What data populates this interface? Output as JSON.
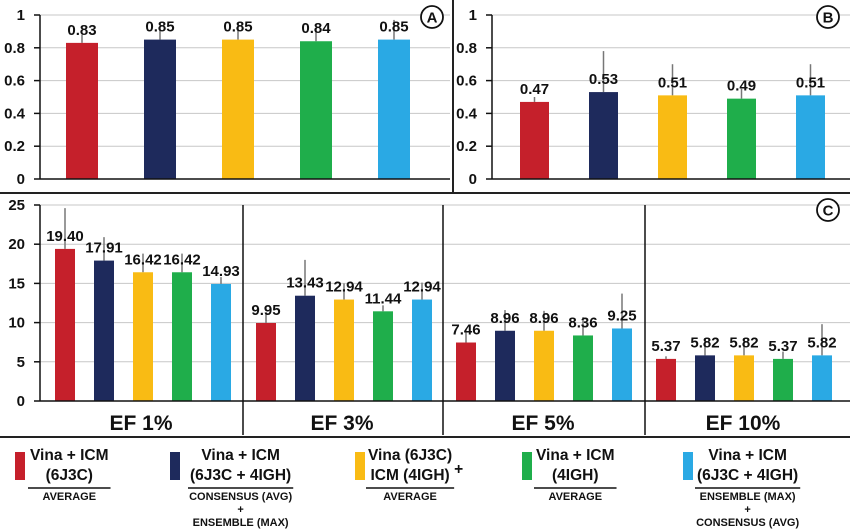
{
  "chart_data": [
    {
      "type": "bar",
      "panel": "A",
      "ylim": [
        0,
        1
      ],
      "yticks": [
        "0",
        "0.2",
        "0.4",
        "0.6",
        "0.8",
        "1"
      ],
      "series": [
        {
          "color": "#c5202b",
          "values": [
            0.83
          ],
          "labels": [
            "0.83"
          ]
        },
        {
          "color": "#1e2a5c",
          "values": [
            0.85
          ],
          "labels": [
            "0.85"
          ]
        },
        {
          "color": "#f9bb14",
          "values": [
            0.85
          ],
          "labels": [
            "0.85"
          ]
        },
        {
          "color": "#1fae4b",
          "values": [
            0.84
          ],
          "labels": [
            "0.84"
          ]
        },
        {
          "color": "#2aa9e4",
          "values": [
            0.85
          ],
          "labels": [
            "0.85"
          ]
        }
      ],
      "errors": [
        0.88,
        0.93,
        0.95,
        0.92,
        0.97
      ]
    },
    {
      "type": "bar",
      "panel": "B",
      "ylim": [
        0,
        1
      ],
      "yticks": [
        "0",
        "0.2",
        "0.4",
        "0.6",
        "0.8",
        "1"
      ],
      "series": [
        {
          "color": "#c5202b",
          "values": [
            0.47
          ],
          "labels": [
            "0.47"
          ]
        },
        {
          "color": "#1e2a5c",
          "values": [
            0.53
          ],
          "labels": [
            "0.53"
          ]
        },
        {
          "color": "#f9bb14",
          "values": [
            0.51
          ],
          "labels": [
            "0.51"
          ]
        },
        {
          "color": "#1fae4b",
          "values": [
            0.49
          ],
          "labels": [
            "0.49"
          ]
        },
        {
          "color": "#2aa9e4",
          "values": [
            0.51
          ],
          "labels": [
            "0.51"
          ]
        }
      ],
      "errors": [
        0.5,
        0.78,
        0.7,
        0.55,
        0.7
      ]
    },
    {
      "type": "bar",
      "panel": "C",
      "ylim": [
        0,
        25
      ],
      "yticks": [
        "0",
        "5",
        "10",
        "15",
        "20",
        "25"
      ],
      "categories": [
        "EF 1%",
        "EF 3%",
        "EF 5%",
        "EF 10%"
      ],
      "series": [
        {
          "color": "#c5202b",
          "values": [
            19.4,
            9.95,
            7.46,
            5.37
          ],
          "labels": [
            "19.40",
            "9.95",
            "7.46",
            "5.37"
          ]
        },
        {
          "color": "#1e2a5c",
          "values": [
            17.91,
            13.43,
            8.96,
            5.82
          ],
          "labels": [
            "17.91",
            "13.43",
            "8.96",
            "5.82"
          ]
        },
        {
          "color": "#f9bb14",
          "values": [
            16.42,
            12.94,
            8.96,
            5.82
          ],
          "labels": [
            "16.42",
            "12.94",
            "8.96",
            "5.82"
          ]
        },
        {
          "color": "#1fae4b",
          "values": [
            16.42,
            11.44,
            8.36,
            5.37
          ],
          "labels": [
            "16.42",
            "11.44",
            "8.36",
            "5.37"
          ]
        },
        {
          "color": "#2aa9e4",
          "values": [
            14.93,
            12.94,
            9.25,
            5.82
          ],
          "labels": [
            "14.93",
            "12.94",
            "9.25",
            "5.82"
          ]
        }
      ],
      "errors": [
        [
          24.6,
          20.9,
          18.8,
          18.8,
          15.8
        ],
        [
          11.3,
          18.0,
          15.0,
          12.2,
          15.1
        ],
        [
          9.2,
          11.6,
          11.5,
          10.7,
          13.7
        ],
        [
          5.7,
          8.0,
          8.0,
          6.3,
          9.8
        ]
      ]
    }
  ],
  "legend": [
    {
      "color": "#c5202b",
      "lines": [
        "Vina + ICM",
        "(6J3C)"
      ],
      "sub": [
        "AVERAGE"
      ]
    },
    {
      "color": "#1e2a5c",
      "lines": [
        "Vina + ICM",
        "(6J3C + 4IGH)"
      ],
      "sub": [
        "CONSENSUS (AVG)",
        "+",
        "ENSEMBLE (MAX)"
      ]
    },
    {
      "color": "#f9bb14",
      "lines": [
        "Vina (6J3C)",
        "ICM (4IGH)"
      ],
      "plus": "+",
      "sub": [
        "AVERAGE"
      ]
    },
    {
      "color": "#1fae4b",
      "lines": [
        "Vina + ICM",
        "(4IGH)"
      ],
      "sub": [
        "AVERAGE"
      ]
    },
    {
      "color": "#2aa9e4",
      "lines": [
        "Vina + ICM",
        "(6J3C + 4IGH)"
      ],
      "sub": [
        "ENSEMBLE (MAX)",
        "+",
        "CONSENSUS (AVG)"
      ]
    }
  ]
}
